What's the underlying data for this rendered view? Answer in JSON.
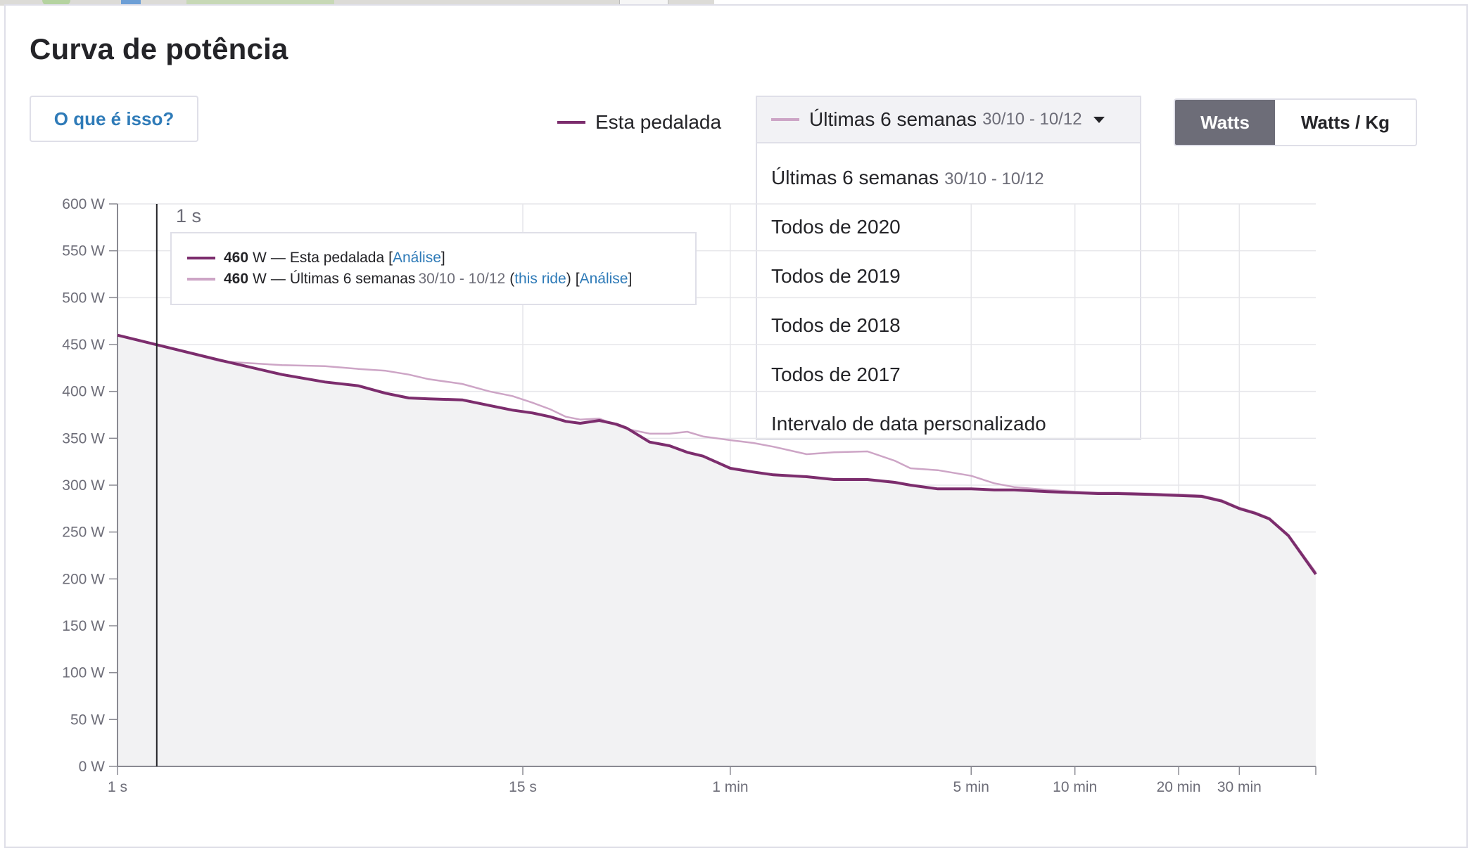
{
  "section_title": "Curva de potência",
  "info_button_label": "O que é isso?",
  "legend": {
    "this_ride_label": "Esta pedalada",
    "this_ride_color": "#7c2d6d",
    "comparison_color": "#cda5c6"
  },
  "period_select": {
    "selected_label": "Últimas 6 semanas",
    "selected_dates": "30/10 - 10/12",
    "options": [
      {
        "label": "Últimas 6 semanas",
        "dates": "30/10 - 10/12"
      },
      {
        "label": "Todos de 2020",
        "dates": ""
      },
      {
        "label": "Todos de 2019",
        "dates": ""
      },
      {
        "label": "Todos de 2018",
        "dates": ""
      },
      {
        "label": "Todos de 2017",
        "dates": ""
      },
      {
        "label": "Intervalo de data personalizado",
        "dates": ""
      }
    ]
  },
  "unit_toggle": {
    "active": "Watts",
    "inactive": "Watts / Kg"
  },
  "tooltip": {
    "time": "1 s",
    "row1": {
      "value": "460",
      "unit": "W",
      "sep": "—",
      "label": "Esta pedalada",
      "bracket_open": "[",
      "link": "Análise",
      "bracket_close": "]"
    },
    "row2": {
      "value": "460",
      "unit": "W",
      "sep": "—",
      "label": "Últimas 6 semanas",
      "dates": "30/10 - 10/12",
      "paren_open": "(",
      "this_ride": "this ride",
      "paren_close": ")",
      "bracket_open": "[",
      "link": "Análise",
      "bracket_close": "]"
    }
  },
  "chart_data": {
    "type": "line",
    "title": "",
    "xlabel": "",
    "ylabel": "",
    "x_scale": "log",
    "x_unit": "seconds",
    "xlim": [
      1,
      3000
    ],
    "ylim": [
      0,
      600
    ],
    "grid": true,
    "legend_position": "top",
    "y_ticks": [
      0,
      50,
      100,
      150,
      200,
      250,
      300,
      350,
      400,
      450,
      500,
      550,
      600
    ],
    "y_tick_labels": [
      "0 W",
      "50 W",
      "100 W",
      "150 W",
      "200 W",
      "250 W",
      "300 W",
      "350 W",
      "400 W",
      "450 W",
      "500 W",
      "550 W",
      "600 W"
    ],
    "x_ticks": [
      1,
      15,
      60,
      300,
      600,
      1200,
      1800
    ],
    "x_tick_labels": [
      "1 s",
      "15 s",
      "1 min",
      "5 min",
      "10 min",
      "20 min",
      "30 min"
    ],
    "cursor_x": 1.3,
    "series": [
      {
        "name": "Esta pedalada",
        "color": "#7c2d6d",
        "x": [
          1,
          2,
          3,
          4,
          5,
          6,
          7,
          8,
          10,
          12,
          14,
          16,
          18,
          20,
          22,
          25,
          28,
          30,
          35,
          40,
          45,
          50,
          60,
          70,
          80,
          100,
          120,
          150,
          180,
          200,
          240,
          300,
          350,
          400,
          500,
          600,
          700,
          800,
          1000,
          1200,
          1400,
          1600,
          1800,
          2000,
          2200,
          2500,
          3000
        ],
        "y": [
          460,
          433,
          418,
          410,
          406,
          398,
          393,
          392,
          391,
          385,
          380,
          377,
          373,
          368,
          366,
          369,
          365,
          361,
          346,
          342,
          335,
          331,
          318,
          314,
          311,
          309,
          306,
          306,
          303,
          300,
          296,
          296,
          295,
          295,
          293,
          292,
          291,
          291,
          290,
          289,
          288,
          283,
          275,
          270,
          264,
          246,
          205
        ]
      },
      {
        "name": "Últimas 6 semanas",
        "color": "#cda5c6",
        "x": [
          1,
          2,
          3,
          4,
          5,
          6,
          7,
          8,
          10,
          12,
          14,
          16,
          18,
          20,
          22,
          25,
          28,
          30,
          35,
          40,
          45,
          50,
          60,
          70,
          80,
          100,
          120,
          150,
          180,
          200,
          240,
          300,
          350,
          400,
          500,
          600,
          700,
          800,
          1000,
          1200,
          1400,
          1600,
          1800,
          2000,
          2200,
          2500,
          3000
        ],
        "y": [
          460,
          432,
          428,
          427,
          424,
          422,
          418,
          413,
          408,
          400,
          395,
          388,
          381,
          373,
          370,
          371,
          364,
          360,
          355,
          355,
          357,
          352,
          348,
          345,
          341,
          333,
          335,
          336,
          326,
          318,
          316,
          310,
          302,
          298,
          295,
          293,
          292,
          292,
          291,
          290,
          289,
          284,
          276,
          271,
          265,
          247,
          207
        ]
      }
    ]
  }
}
